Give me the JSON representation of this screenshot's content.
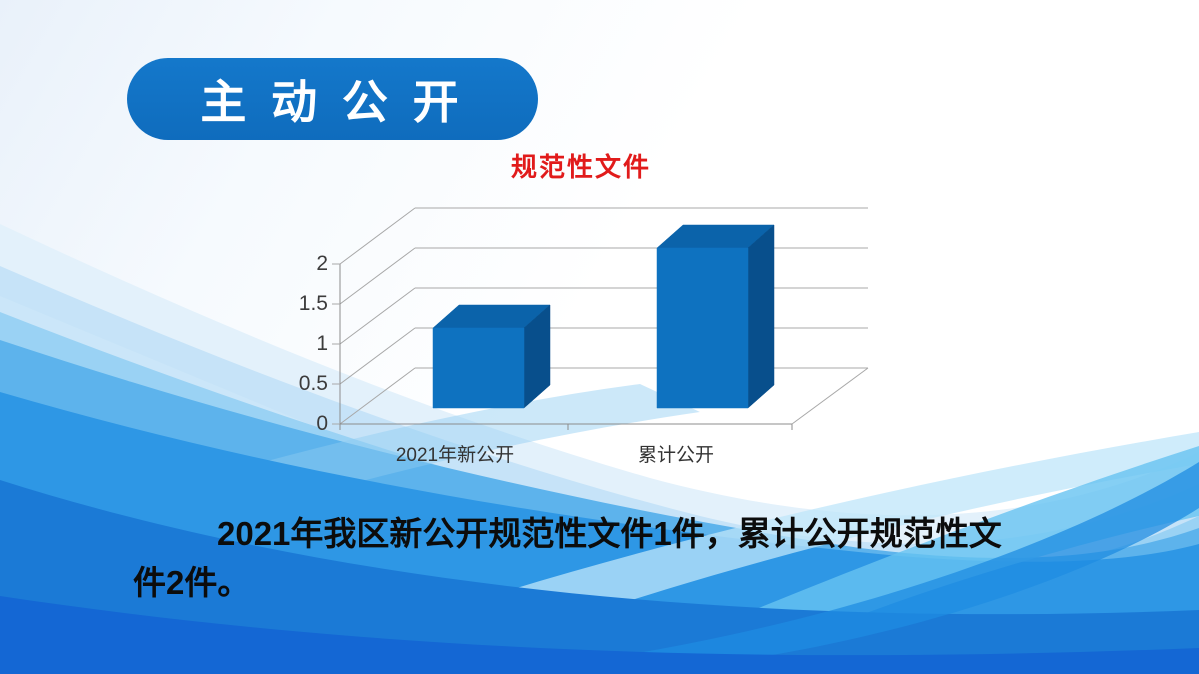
{
  "badge": {
    "label": "主 动 公 开"
  },
  "chart_data": {
    "type": "bar",
    "style": "3d",
    "title": "规范性文件",
    "title_color": "#e11b1b",
    "categories": [
      "2021年新公开",
      "累计公开"
    ],
    "series": [
      {
        "name": "规范性文件",
        "values": [
          1,
          2
        ]
      }
    ],
    "yticks": [
      "2",
      "1.5",
      "1",
      "0.5",
      "0"
    ],
    "ylim": [
      0,
      2
    ],
    "grid": true,
    "legend": false,
    "bar_colors": {
      "front": "#0e72c0",
      "top": "#0b63aa",
      "side": "#084f8c"
    }
  },
  "paragraph": {
    "line1": "2021年我区新公开规范性文件1件，累计公开规范性文",
    "line2": "件2件。"
  },
  "colors": {
    "badge_blue": "#1173c5",
    "wave_deep_blue": "#1467d4",
    "wave_mid_blue": "#2e97e5",
    "grid_gray": "#a8a8a8"
  }
}
